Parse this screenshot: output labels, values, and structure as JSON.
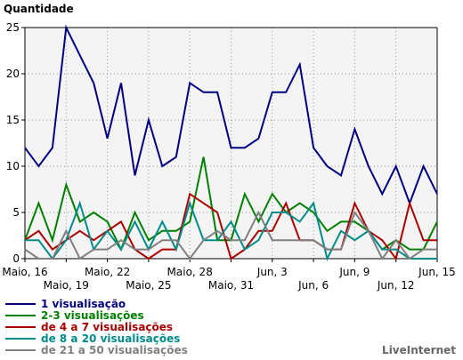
{
  "chart_data": {
    "type": "line",
    "ylabel": "Quantidade",
    "ylim": [
      0,
      25
    ],
    "yticks": [
      0,
      5,
      10,
      15,
      20,
      25
    ],
    "x_tick_labels": [
      {
        "index": 1,
        "label": "Maio, 16",
        "row": 0
      },
      {
        "index": 4,
        "label": "Maio, 19",
        "row": 1
      },
      {
        "index": 7,
        "label": "Maio, 22",
        "row": 0
      },
      {
        "index": 10,
        "label": "Maio, 25",
        "row": 1
      },
      {
        "index": 13,
        "label": "Maio, 28",
        "row": 0
      },
      {
        "index": 16,
        "label": "Maio, 31",
        "row": 1
      },
      {
        "index": 19,
        "label": "Jun, 3",
        "row": 0
      },
      {
        "index": 22,
        "label": "Jun, 6",
        "row": 1
      },
      {
        "index": 25,
        "label": "Jun, 9",
        "row": 0
      },
      {
        "index": 28,
        "label": "Jun, 12",
        "row": 1
      },
      {
        "index": 31,
        "label": "Jun, 15",
        "row": 0
      }
    ],
    "grid": true,
    "series": [
      {
        "name": "1 visualisação",
        "color": "#000080",
        "values": [
          12,
          10,
          12,
          25,
          22,
          19,
          13,
          19,
          9,
          15,
          10,
          11,
          19,
          18,
          18,
          12,
          12,
          13,
          18,
          18,
          21,
          12,
          10,
          9,
          14,
          10,
          7,
          10,
          6,
          10,
          7
        ]
      },
      {
        "name": "2-3 visualisações",
        "color": "#008000",
        "values": [
          2,
          6,
          2,
          8,
          4,
          5,
          4,
          1,
          5,
          2,
          3,
          3,
          4,
          11,
          2,
          2,
          7,
          4,
          7,
          5,
          6,
          5,
          3,
          4,
          4,
          3,
          1,
          2,
          1,
          1,
          4
        ]
      },
      {
        "name": "de 4 a 7 visualisações",
        "color": "#aa0000",
        "values": [
          2,
          3,
          1,
          2,
          3,
          2,
          3,
          4,
          1,
          0,
          1,
          1,
          7,
          6,
          5,
          0,
          1,
          3,
          3,
          6,
          2,
          2,
          1,
          1,
          6,
          3,
          2,
          0,
          6,
          2,
          2
        ]
      },
      {
        "name": "de 8 a 20 visualisações",
        "color": "#008b8b",
        "values": [
          2,
          2,
          0,
          2,
          6,
          1,
          3,
          1,
          4,
          1,
          4,
          1,
          6,
          2,
          2,
          4,
          1,
          2,
          5,
          5,
          4,
          6,
          0,
          3,
          2,
          3,
          1,
          1,
          0,
          0,
          0
        ]
      },
      {
        "name": "de 21 a 50 visualisações",
        "color": "#808080",
        "values": [
          1,
          0,
          0,
          3,
          0,
          1,
          1,
          2,
          1,
          1,
          2,
          2,
          0,
          2,
          3,
          2,
          2,
          5,
          2,
          2,
          2,
          2,
          1,
          1,
          5,
          3,
          0,
          2,
          0,
          1,
          1
        ]
      }
    ]
  },
  "credit": "LiveInternet"
}
